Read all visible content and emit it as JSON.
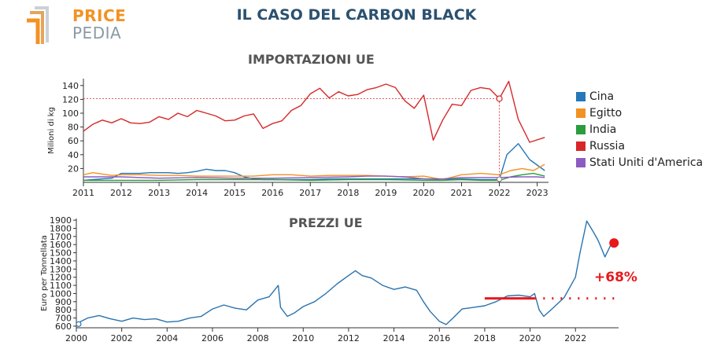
{
  "header": {
    "title": "IL CASO DEL CARBON BLACK",
    "logo_top": "PRICE",
    "logo_bottom": "PEDIA"
  },
  "colors": {
    "title": "#2b5170",
    "logo_orange": "#f39223",
    "logo_grey": "#8a9aa5",
    "accent_red": "#e8191b"
  },
  "chart_data": [
    {
      "type": "line",
      "title": "IMPORTAZIONI UE",
      "ylabel": "Milioni di kg",
      "xlabel": "",
      "xlim": [
        2011,
        2023.3
      ],
      "ylim": [
        0,
        150
      ],
      "x_ticks": [
        "2011",
        "2012",
        "2013",
        "2014",
        "2015",
        "2016",
        "2017",
        "2018",
        "2019",
        "2020",
        "2021",
        "2022",
        "2023"
      ],
      "y_ticks": [
        "20",
        "40",
        "60",
        "80",
        "100",
        "120",
        "140"
      ],
      "annotation": {
        "x": 2022,
        "y": 121,
        "style": "dotted reference to 2022 value"
      },
      "legend_position": "right",
      "series": [
        {
          "name": "Cina",
          "color": "#2677b8",
          "x": [
            2011,
            2011.25,
            2011.5,
            2011.75,
            2012,
            2012.25,
            2012.5,
            2012.75,
            2013,
            2013.25,
            2013.5,
            2013.75,
            2014,
            2014.25,
            2014.5,
            2014.75,
            2015,
            2015.25,
            2015.5,
            2015.75,
            2016,
            2016.5,
            2017,
            2017.5,
            2018,
            2018.5,
            2019,
            2019.5,
            2020,
            2020.5,
            2021,
            2021.5,
            2022,
            2022.2,
            2022.5,
            2022.8,
            2023.2
          ],
          "values": [
            3,
            4,
            5,
            6,
            13,
            13,
            13,
            14,
            14,
            14,
            13,
            14,
            16,
            19,
            17,
            17,
            14,
            8,
            5,
            4,
            4,
            4,
            4,
            5,
            5,
            5,
            5,
            5,
            5,
            4,
            5,
            4,
            4,
            40,
            56,
            33,
            17
          ]
        },
        {
          "name": "Egitto",
          "color": "#f39223",
          "x": [
            2011,
            2011.25,
            2011.5,
            2011.75,
            2012,
            2012.5,
            2013,
            2013.5,
            2014,
            2014.5,
            2015,
            2015.5,
            2016,
            2016.5,
            2017,
            2017.5,
            2018,
            2018.5,
            2019,
            2019.5,
            2020,
            2020.5,
            2021,
            2021.5,
            2022,
            2022.3,
            2022.6,
            2022.9,
            2023.2
          ],
          "values": [
            11,
            14,
            12,
            10,
            11,
            11,
            10,
            10,
            9,
            9,
            9,
            9,
            11,
            11,
            9,
            10,
            10,
            10,
            9,
            8,
            9,
            4,
            11,
            13,
            11,
            17,
            20,
            17,
            26
          ]
        },
        {
          "name": "India",
          "color": "#2a9d3e",
          "x": [
            2011,
            2012,
            2013,
            2014,
            2015,
            2016,
            2017,
            2018,
            2019,
            2020,
            2020.5,
            2021,
            2021.5,
            2022,
            2022.3,
            2022.6,
            2022.9,
            2023.2
          ],
          "values": [
            3,
            3,
            3,
            4,
            4,
            4,
            3,
            4,
            4,
            3,
            3,
            4,
            3,
            3,
            8,
            11,
            13,
            9
          ]
        },
        {
          "name": "Russia",
          "color": "#d62829",
          "x": [
            2011,
            2011.25,
            2011.5,
            2011.75,
            2012,
            2012.25,
            2012.5,
            2012.75,
            2013,
            2013.25,
            2013.5,
            2013.75,
            2014,
            2014.25,
            2014.5,
            2014.75,
            2015,
            2015.25,
            2015.5,
            2015.75,
            2016,
            2016.25,
            2016.5,
            2016.75,
            2017,
            2017.25,
            2017.5,
            2017.75,
            2018,
            2018.25,
            2018.5,
            2018.75,
            2019,
            2019.25,
            2019.5,
            2019.75,
            2020,
            2020.25,
            2020.5,
            2020.75,
            2021,
            2021.25,
            2021.5,
            2021.75,
            2022,
            2022.25,
            2022.5,
            2022.8,
            2023.2
          ],
          "values": [
            74,
            84,
            90,
            86,
            92,
            86,
            85,
            87,
            95,
            91,
            100,
            95,
            104,
            100,
            96,
            89,
            90,
            96,
            99,
            78,
            85,
            89,
            104,
            111,
            128,
            136,
            122,
            131,
            125,
            127,
            134,
            137,
            142,
            137,
            118,
            107,
            126,
            61,
            90,
            113,
            111,
            133,
            137,
            135,
            121,
            146,
            91,
            58,
            65
          ]
        },
        {
          "name": "Stati Uniti d'America",
          "color": "#8d5bc1",
          "x": [
            2011,
            2012,
            2013,
            2014,
            2015,
            2016,
            2017,
            2018,
            2018.5,
            2019,
            2019.5,
            2020,
            2020.5,
            2021,
            2022,
            2022.5,
            2023,
            2023.2
          ],
          "values": [
            8,
            8,
            6,
            7,
            6,
            6,
            7,
            8,
            9,
            9,
            8,
            5,
            5,
            7,
            7,
            8,
            8,
            7
          ]
        }
      ]
    },
    {
      "type": "line",
      "title": "PREZZI UE",
      "ylabel": "Euro per Tonnellata",
      "xlabel": "",
      "xlim": [
        2000,
        2023.9
      ],
      "ylim": [
        580,
        1920
      ],
      "x_ticks": [
        "2000",
        "2002",
        "2004",
        "2006",
        "2008",
        "2010",
        "2012",
        "2014",
        "2016",
        "2018",
        "2020",
        "2022"
      ],
      "y_ticks": [
        "600",
        "700",
        "800",
        "900",
        "1000",
        "1100",
        "1200",
        "1300",
        "1400",
        "1500",
        "1600",
        "1700",
        "1800",
        "1900"
      ],
      "annotation_text": "+68%",
      "baseline": {
        "x_start": 2018,
        "x_solid_end": 2020.2,
        "x_dotted_end": 2023.9,
        "y": 940
      },
      "endpoint": {
        "x": 2023.7,
        "y": 1620
      },
      "start_marker": {
        "x": 2000.1,
        "y": 625
      },
      "series": [
        {
          "name": "",
          "color": "#2a73ae",
          "x": [
            2000,
            2000.5,
            2001,
            2001.5,
            2002,
            2002.5,
            2003,
            2003.5,
            2004,
            2004.5,
            2005,
            2005.5,
            2006,
            2006.5,
            2007,
            2007.5,
            2008,
            2008.5,
            2008.9,
            2009,
            2009.3,
            2009.6,
            2010,
            2010.5,
            2011,
            2011.5,
            2012,
            2012.3,
            2012.6,
            2013,
            2013.5,
            2014,
            2014.5,
            2015,
            2015.3,
            2015.6,
            2016,
            2016.3,
            2016.6,
            2017,
            2017.5,
            2018,
            2018.5,
            2019,
            2019.5,
            2020,
            2020.2,
            2020.4,
            2020.6,
            2021,
            2021.5,
            2022,
            2022.2,
            2022.5,
            2022.8,
            2023,
            2023.3,
            2023.6
          ],
          "values": [
            630,
            700,
            730,
            690,
            660,
            700,
            680,
            690,
            650,
            660,
            700,
            720,
            810,
            860,
            820,
            800,
            920,
            960,
            1100,
            830,
            720,
            760,
            840,
            900,
            1000,
            1120,
            1220,
            1280,
            1220,
            1190,
            1100,
            1050,
            1080,
            1040,
            900,
            780,
            660,
            620,
            700,
            810,
            830,
            850,
            900,
            970,
            980,
            960,
            1000,
            800,
            720,
            820,
            950,
            1200,
            1500,
            1890,
            1750,
            1650,
            1450,
            1620
          ]
        }
      ]
    }
  ]
}
